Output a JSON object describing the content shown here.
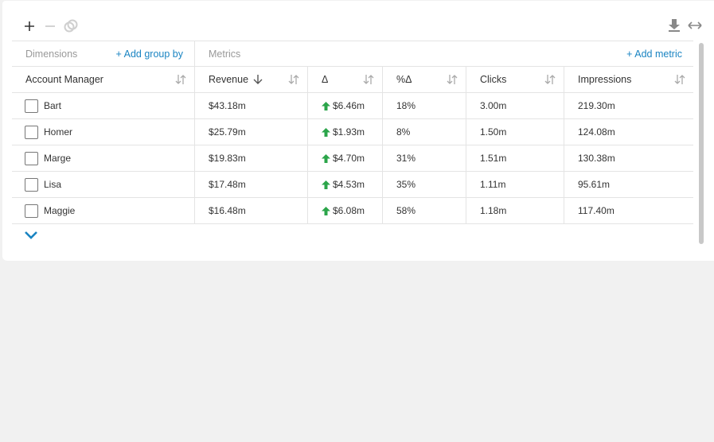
{
  "toolbar": {
    "plus_icon": "plus-icon",
    "minus_icon": "minus-icon",
    "link_icon": "link-icon",
    "download_icon": "download-icon",
    "resize_icon": "horizontal-resize-icon"
  },
  "sections": {
    "dimensions_label": "Dimensions",
    "add_group_by": "+ Add group by",
    "metrics_label": "Metrics",
    "add_metric": "+ Add metric"
  },
  "columns": [
    "Account Manager",
    "Revenue",
    "Δ",
    "%Δ",
    "Clicks",
    "Impressions"
  ],
  "rows": [
    {
      "name": "Bart",
      "revenue": "$43.18m",
      "delta": "$6.46m",
      "pct": "18%",
      "clicks": "3.00m",
      "impressions": "219.30m"
    },
    {
      "name": "Homer",
      "revenue": "$25.79m",
      "delta": "$1.93m",
      "pct": "8%",
      "clicks": "1.50m",
      "impressions": "124.08m"
    },
    {
      "name": "Marge",
      "revenue": "$19.83m",
      "delta": "$4.70m",
      "pct": "31%",
      "clicks": "1.51m",
      "impressions": "130.38m"
    },
    {
      "name": "Lisa",
      "revenue": "$17.48m",
      "delta": "$4.53m",
      "pct": "35%",
      "clicks": "1.11m",
      "impressions": "95.61m"
    },
    {
      "name": "Maggie",
      "revenue": "$16.48m",
      "delta": "$6.08m",
      "pct": "58%",
      "clicks": "1.18m",
      "impressions": "117.40m"
    }
  ],
  "colors": {
    "accent": "#1a84c2",
    "positive": "#2ba54a",
    "background": "#f1f1f1"
  }
}
